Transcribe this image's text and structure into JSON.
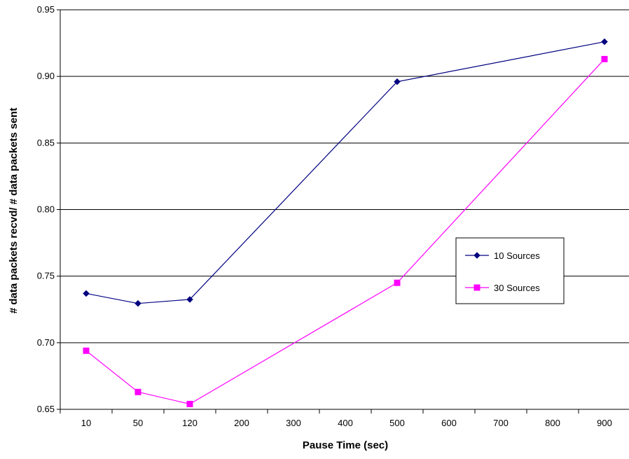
{
  "chart_data": {
    "type": "line",
    "title": "",
    "xlabel": "Pause Time (sec)",
    "ylabel": "# data packets recvd/ # data packets sent",
    "categories": [
      "10",
      "50",
      "120",
      "200",
      "300",
      "400",
      "500",
      "600",
      "700",
      "800",
      "900"
    ],
    "ylim": [
      0.65,
      0.95
    ],
    "yticks": [
      "0.65",
      "0.70",
      "0.75",
      "0.80",
      "0.85",
      "0.90",
      "0.95"
    ],
    "grid": "horizontal",
    "legend_position": "right",
    "series": [
      {
        "name": "10 Sources",
        "color": "#000080",
        "marker": "diamond",
        "points": [
          {
            "x": "10",
            "y": 0.737
          },
          {
            "x": "50",
            "y": 0.7295
          },
          {
            "x": "120",
            "y": 0.7325
          },
          {
            "x": "500",
            "y": 0.896
          },
          {
            "x": "900",
            "y": 0.926
          }
        ]
      },
      {
        "name": "30 Sources",
        "color": "#ff00ff",
        "marker": "square",
        "points": [
          {
            "x": "10",
            "y": 0.694
          },
          {
            "x": "50",
            "y": 0.663
          },
          {
            "x": "120",
            "y": 0.654
          },
          {
            "x": "500",
            "y": 0.745
          },
          {
            "x": "900",
            "y": 0.913
          }
        ]
      }
    ]
  }
}
